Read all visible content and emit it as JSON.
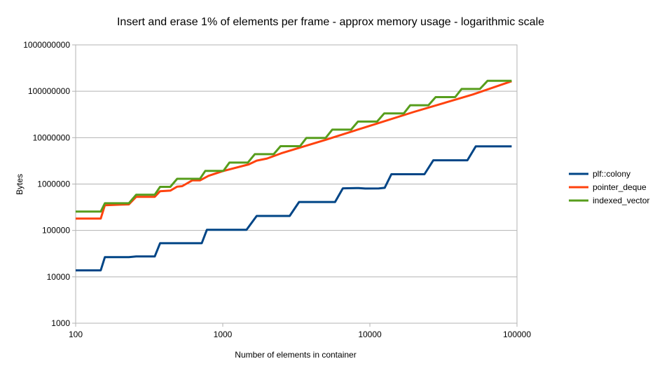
{
  "chart_data": {
    "type": "line",
    "title": "Insert and erase 1% of elements per frame - approx memory usage - logarithmic scale",
    "xlabel": "Number of elements in container",
    "ylabel": "Bytes",
    "x_scale": "log",
    "y_scale": "log",
    "xlim": [
      100,
      100000
    ],
    "ylim": [
      1000,
      1000000000
    ],
    "x_ticks": [
      100,
      1000,
      10000,
      100000
    ],
    "x_tick_labels": [
      "100",
      "1000",
      "10000",
      "100000"
    ],
    "y_ticks": [
      1000,
      10000,
      100000,
      1000000,
      10000000,
      100000000,
      1000000000
    ],
    "y_tick_labels": [
      "1000",
      "10000",
      "100000",
      "1000000",
      "10000000",
      "100000000",
      "1000000000"
    ],
    "grid": "horizontal",
    "legend_position": "right",
    "series": [
      {
        "name": "plf::colony",
        "color": "#004586",
        "points": [
          [
            100,
            13800
          ],
          [
            148,
            13800
          ],
          [
            158,
            26500
          ],
          [
            230,
            26500
          ],
          [
            258,
            27500
          ],
          [
            345,
            27500
          ],
          [
            375,
            53000
          ],
          [
            720,
            53000
          ],
          [
            780,
            103000
          ],
          [
            1450,
            103000
          ],
          [
            1700,
            205000
          ],
          [
            2850,
            205000
          ],
          [
            3300,
            410000
          ],
          [
            5800,
            410000
          ],
          [
            6550,
            810000
          ],
          [
            8400,
            820000
          ],
          [
            9300,
            800000
          ],
          [
            11500,
            805000
          ],
          [
            12600,
            830000
          ],
          [
            14000,
            1630000
          ],
          [
            23500,
            1630000
          ],
          [
            27000,
            3250000
          ],
          [
            46000,
            3250000
          ],
          [
            52500,
            6500000
          ],
          [
            92000,
            6500000
          ]
        ]
      },
      {
        "name": "pointer_deque",
        "color": "#ff420e",
        "points": [
          [
            100,
            180000
          ],
          [
            148,
            180000
          ],
          [
            158,
            350000
          ],
          [
            200,
            360000
          ],
          [
            230,
            365000
          ],
          [
            258,
            530000
          ],
          [
            345,
            530000
          ],
          [
            375,
            700000
          ],
          [
            440,
            720000
          ],
          [
            490,
            880000
          ],
          [
            530,
            900000
          ],
          [
            620,
            1200000
          ],
          [
            700,
            1200000
          ],
          [
            800,
            1500000
          ],
          [
            1000,
            1900000
          ],
          [
            1500,
            2650000
          ],
          [
            1700,
            3200000
          ],
          [
            2000,
            3550000
          ],
          [
            2500,
            4600000
          ],
          [
            5000,
            9000000
          ],
          [
            10000,
            18000000
          ],
          [
            20000,
            36000000
          ],
          [
            50000,
            85000000
          ],
          [
            92000,
            165000000
          ]
        ]
      },
      {
        "name": "indexed_vector",
        "color": "#579d1c",
        "points": [
          [
            100,
            255000
          ],
          [
            148,
            255000
          ],
          [
            158,
            385000
          ],
          [
            230,
            385000
          ],
          [
            258,
            590000
          ],
          [
            345,
            590000
          ],
          [
            375,
            870000
          ],
          [
            440,
            870000
          ],
          [
            490,
            1300000
          ],
          [
            700,
            1300000
          ],
          [
            760,
            1920000
          ],
          [
            1010,
            1920000
          ],
          [
            1110,
            2900000
          ],
          [
            1480,
            2900000
          ],
          [
            1650,
            4400000
          ],
          [
            2220,
            4400000
          ],
          [
            2470,
            6550000
          ],
          [
            3350,
            6550000
          ],
          [
            3700,
            9850000
          ],
          [
            5000,
            9850000
          ],
          [
            5550,
            14900000
          ],
          [
            7450,
            14900000
          ],
          [
            8300,
            22200000
          ],
          [
            11200,
            22200000
          ],
          [
            12500,
            33300000
          ],
          [
            17000,
            33300000
          ],
          [
            18800,
            50000000
          ],
          [
            25000,
            50000000
          ],
          [
            28000,
            74900000
          ],
          [
            38000,
            74900000
          ],
          [
            42000,
            112000000
          ],
          [
            56000,
            112000000
          ],
          [
            63000,
            168000000
          ],
          [
            92000,
            168000000
          ]
        ]
      }
    ]
  }
}
